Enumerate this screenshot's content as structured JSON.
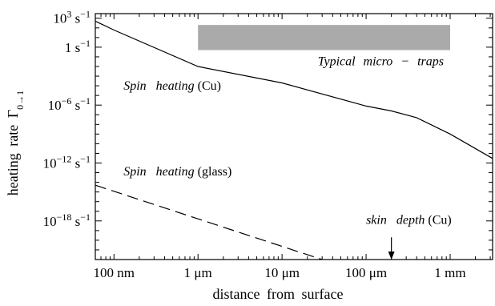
{
  "chart_data": {
    "type": "line",
    "xlabel": "distance from surface",
    "ylabel": "heating rate Γ",
    "ylabel_sub": "0→1",
    "x_scale": "log",
    "y_scale": "log",
    "xlim_m": [
      6e-08,
      0.0032
    ],
    "ylim_per_s": [
      1e-22,
      3000.0
    ],
    "x_ticks": [
      {
        "value_m": 1e-07,
        "label": "100 nm"
      },
      {
        "value_m": 1e-06,
        "label": "1 μm"
      },
      {
        "value_m": 1e-05,
        "label": "10 μm"
      },
      {
        "value_m": 0.0001,
        "label": "100 μm"
      },
      {
        "value_m": 0.001,
        "label": "1 mm"
      }
    ],
    "y_ticks": [
      {
        "value_per_s": 1000,
        "base": "10",
        "exp": "3",
        "unit": "s",
        "unit_exp": "−1"
      },
      {
        "value_per_s": 1,
        "base": "1",
        "exp": "",
        "unit": "s",
        "unit_exp": "−1"
      },
      {
        "value_per_s": 1e-06,
        "base": "10",
        "exp": "−6",
        "unit": "s",
        "unit_exp": "−1"
      },
      {
        "value_per_s": 1e-12,
        "base": "10",
        "exp": "−12",
        "unit": "s",
        "unit_exp": "−1"
      },
      {
        "value_per_s": 1e-18,
        "base": "10",
        "exp": "−18",
        "unit": "s",
        "unit_exp": "−1"
      }
    ],
    "series": [
      {
        "style": "solid",
        "points": [
          [
            6e-08,
            500
          ],
          [
            1e-07,
            60
          ],
          [
            1e-06,
            0.01
          ],
          [
            1e-05,
            0.0002
          ],
          [
            0.0001,
            8e-07
          ],
          [
            0.0002,
            2.5e-07
          ],
          [
            0.0004,
            5e-08
          ],
          [
            0.001,
            1e-09
          ],
          [
            0.0032,
            3e-12
          ]
        ]
      },
      {
        "style": "dashed",
        "points": [
          [
            6e-08,
            5e-15
          ],
          [
            3e-05,
            1e-22
          ]
        ]
      }
    ],
    "band": {
      "label_italic": "Typical micro − traps",
      "x_range_m": [
        1e-06,
        0.001
      ],
      "y_range_per_s": [
        0.5,
        200
      ],
      "color": "#aaaaaa"
    },
    "annotations": [
      {
        "italic": "Spin heating",
        "upright": "(Cu)",
        "at": [
          1.3e-07,
          4e-05
        ]
      },
      {
        "italic": "Spin heating",
        "upright": "(glass)",
        "at": [
          1.3e-07,
          5e-14
        ]
      },
      {
        "italic": "skin depth",
        "upright": "(Cu)",
        "at": [
          0.0001,
          5e-19
        ]
      }
    ],
    "skin_depth_arrow": {
      "x_m": 0.0002,
      "y_from_per_s": 2e-20,
      "y_to_per_s": 1e-22
    }
  }
}
